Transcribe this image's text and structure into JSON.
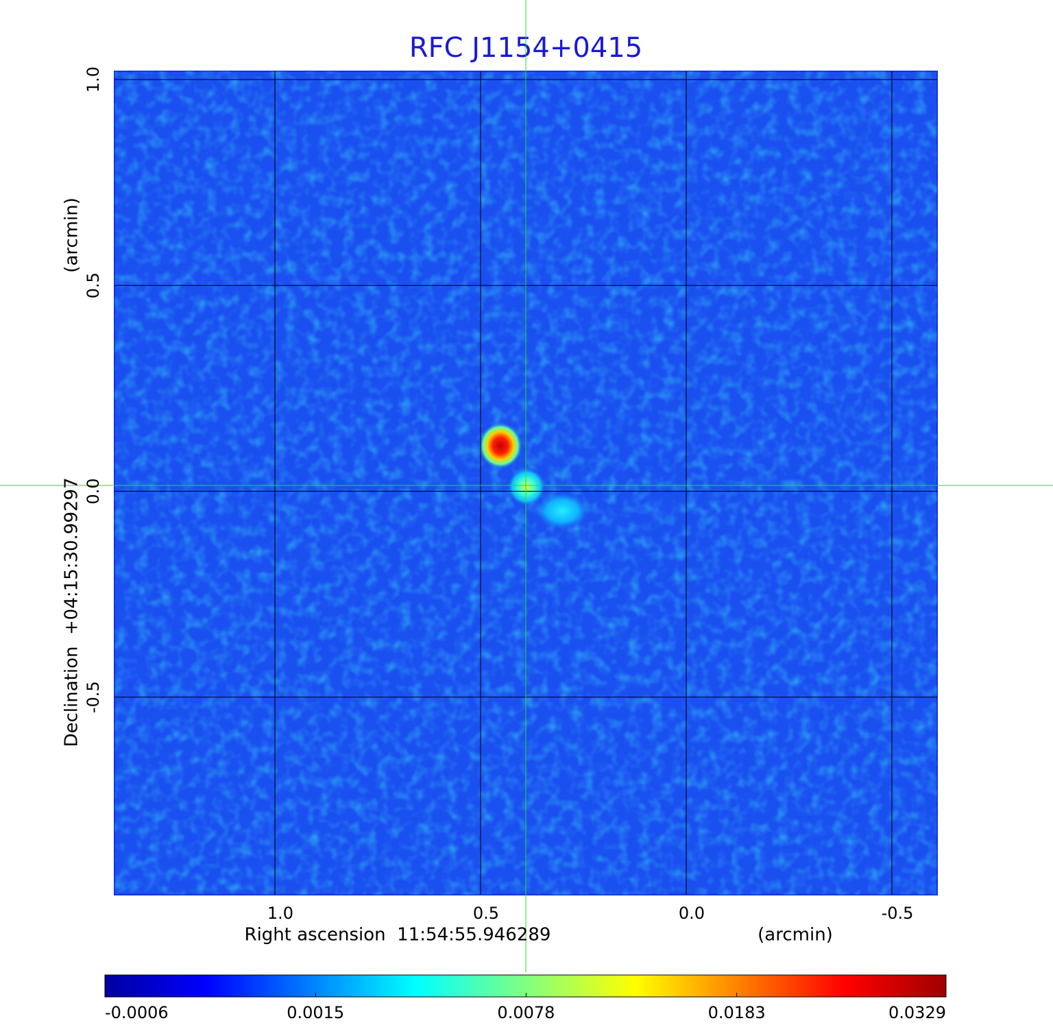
{
  "chart_data": {
    "type": "image",
    "title": "RFC J1154+0415",
    "x_label": "Right ascension  11:54:55.946289",
    "x_unit": "(arcmin)",
    "y_label": "Declination  +04:15:30.99297",
    "y_unit": "(arcmin)",
    "xlim": [
      1.39,
      -0.61
    ],
    "xticks": [
      {
        "value": 1,
        "label": "1.0"
      },
      0.5,
      {
        "value": 0,
        "label": "0.0"
      },
      -0.5
    ],
    "ylim": [
      -0.98,
      1.02
    ],
    "yticks": [
      {
        "value": 1,
        "label": "1.0"
      },
      0.5,
      {
        "value": 0,
        "label": "0.0"
      },
      -0.5
    ],
    "grid": true,
    "colorbar_lim": [
      -0.0006,
      0.0329
    ],
    "colorbar_scale": "sqrt",
    "colorbar_ticks": [
      -0.0006,
      0.0015,
      0.0078,
      0.0183,
      0.0329
    ]
  }
}
